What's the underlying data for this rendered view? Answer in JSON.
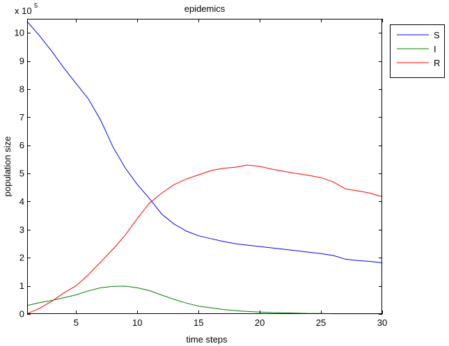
{
  "chart_data": {
    "type": "line",
    "title": "epidemics",
    "xlabel": "time steps",
    "ylabel": "population size",
    "y_multiplier_base": "x 10",
    "y_multiplier_exp": "5",
    "xlim": [
      1,
      30
    ],
    "ylim": [
      0,
      10.5
    ],
    "xticks": [
      5,
      10,
      15,
      20,
      25,
      30
    ],
    "yticks": [
      0,
      1,
      2,
      3,
      4,
      5,
      6,
      7,
      8,
      9,
      10
    ],
    "grid": false,
    "legend_position": "outside-top-right",
    "x": [
      1,
      2,
      3,
      4,
      5,
      6,
      7,
      8,
      9,
      10,
      11,
      12,
      13,
      14,
      15,
      16,
      17,
      18,
      19,
      20,
      21,
      22,
      23,
      24,
      25,
      26,
      27,
      28,
      29,
      30
    ],
    "series": [
      {
        "name": "S",
        "color": "#0000ff",
        "values": [
          10.4,
          9.9,
          9.35,
          8.75,
          8.2,
          7.65,
          6.9,
          5.95,
          5.2,
          4.6,
          4.1,
          3.55,
          3.2,
          2.95,
          2.78,
          2.68,
          2.58,
          2.5,
          2.45,
          2.4,
          2.35,
          2.3,
          2.25,
          2.2,
          2.15,
          2.08,
          1.95,
          1.9,
          1.87,
          1.82
        ]
      },
      {
        "name": "I",
        "color": "#008000",
        "values": [
          0.3,
          0.4,
          0.48,
          0.58,
          0.68,
          0.82,
          0.93,
          0.98,
          0.99,
          0.93,
          0.83,
          0.67,
          0.52,
          0.39,
          0.28,
          0.22,
          0.16,
          0.12,
          0.09,
          0.07,
          0.05,
          0.04,
          0.03,
          0.02,
          0.02,
          0.01,
          0.01,
          0.01,
          0.01,
          0.01
        ]
      },
      {
        "name": "R",
        "color": "#ff0000",
        "values": [
          0.01,
          0.2,
          0.45,
          0.75,
          1.0,
          1.4,
          1.85,
          2.3,
          2.8,
          3.4,
          3.95,
          4.3,
          4.6,
          4.8,
          4.95,
          5.1,
          5.18,
          5.22,
          5.3,
          5.25,
          5.15,
          5.07,
          5.0,
          4.93,
          4.85,
          4.7,
          4.45,
          4.38,
          4.3,
          4.17
        ]
      }
    ]
  }
}
